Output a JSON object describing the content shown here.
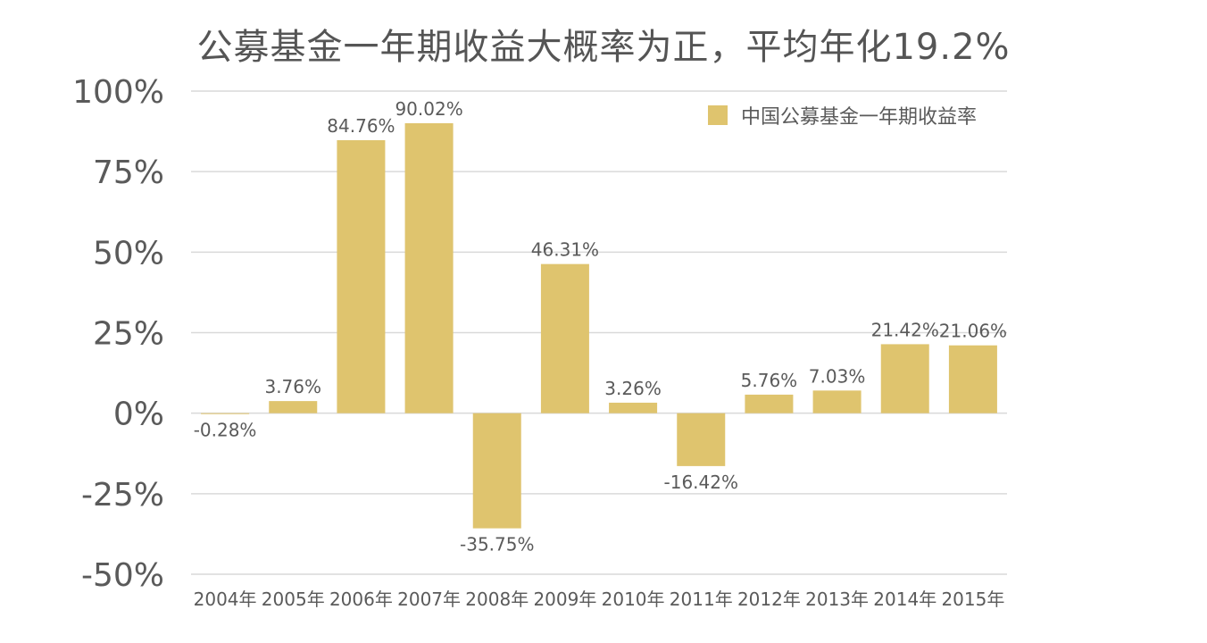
{
  "chart_data": {
    "type": "bar",
    "title": "公募基金一年期收益大概率为正，平均年化19.2%",
    "categories": [
      "2004年",
      "2005年",
      "2006年",
      "2007年",
      "2008年",
      "2009年",
      "2010年",
      "2011年",
      "2012年",
      "2013年",
      "2014年",
      "2015年"
    ],
    "series": [
      {
        "name": "中国公募基金一年期收益率",
        "values": [
          -0.28,
          3.76,
          84.76,
          90.02,
          -35.75,
          46.31,
          3.26,
          -16.42,
          5.76,
          7.03,
          21.42,
          21.06
        ],
        "labels": [
          "-0.28%",
          "3.76%",
          "84.76%",
          "90.02%",
          "-35.75%",
          "46.31%",
          "3.26%",
          "-16.42%",
          "5.76%",
          "7.03%",
          "21.42%",
          "21.06%"
        ]
      }
    ],
    "ylim": [
      -50,
      100
    ],
    "yticks": [
      100,
      75,
      50,
      25,
      0,
      -25,
      -50
    ],
    "ytick_labels": [
      "100%",
      "75%",
      "50%",
      "25%",
      "0%",
      "-25%",
      "-50%"
    ],
    "grid": true,
    "legend": "top-right",
    "colors": {
      "bar": "#dfc46e",
      "grid": "#d9d9d9",
      "text": "#5a5a5a"
    }
  }
}
